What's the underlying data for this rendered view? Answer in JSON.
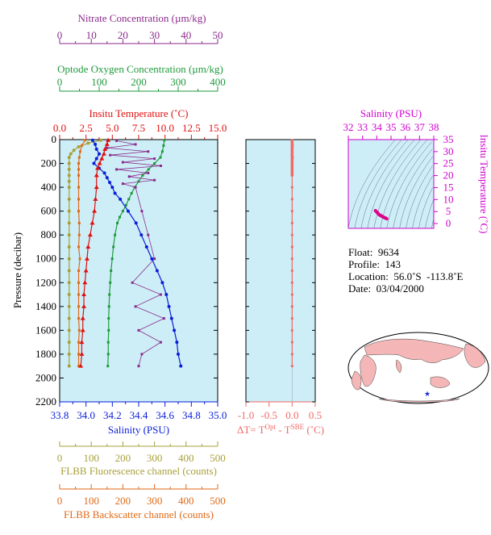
{
  "colors": {
    "panel_bg": "#cdeef7",
    "nitrate": "#8b2a8b",
    "oxygen": "#1e9a3c",
    "temperature": "#e01010",
    "salinity": "#0a1ed8",
    "delta_t": "#f06a6a",
    "fluorescence": "#a8a03a",
    "backscatter": "#e06a18",
    "ts_axis": "#d000d0",
    "ts_contours": "#6a6a8a",
    "ts_points": "#e0008a",
    "map_land": "#f4b6b6",
    "map_ocean": "#ffffff",
    "map_marker": "#1a2ed8"
  },
  "axes": {
    "nitrate": {
      "label": "Nitrate Concentration (µm/kg)",
      "ticks": [
        "0",
        "10",
        "20",
        "30",
        "40",
        "50"
      ],
      "range": [
        0,
        50
      ]
    },
    "oxygen": {
      "label": "Optode Oxygen Concentration (µm/kg)",
      "ticks": [
        "0",
        "100",
        "200",
        "300",
        "400"
      ],
      "range": [
        0,
        400
      ]
    },
    "temperature": {
      "label": "Insitu Temperature (˚C)",
      "ticks": [
        "0.0",
        "2.5",
        "5.0",
        "7.5",
        "10.0",
        "12.5",
        "15.0"
      ],
      "range": [
        0,
        15
      ]
    },
    "pressure": {
      "label": "Pressure (decibar)",
      "ticks": [
        "0",
        "200",
        "400",
        "600",
        "800",
        "1000",
        "1200",
        "1400",
        "1600",
        "1800",
        "2000",
        "2200"
      ],
      "range": [
        0,
        2200
      ]
    },
    "salinity": {
      "label": "Salinity (PSU)",
      "ticks": [
        "33.8",
        "34.0",
        "34.2",
        "34.4",
        "34.6",
        "34.8",
        "35.0"
      ],
      "range": [
        33.8,
        35.0
      ]
    },
    "delta_t": {
      "label_prefix": "ΔT= T",
      "sup1": "Opt",
      "mid": " - T",
      "sup2": "SBE",
      "suffix": " (˚C)",
      "ticks": [
        "-1.0",
        "-0.5",
        "0.0",
        "0.5"
      ],
      "range": [
        -1.0,
        0.5
      ]
    },
    "fluorescence": {
      "label": "FLBB Fluorescence channel (counts)",
      "ticks": [
        "0",
        "100",
        "200",
        "300",
        "400",
        "500"
      ],
      "range": [
        0,
        500
      ]
    },
    "backscatter": {
      "label": "FLBB Backscatter channel (counts)",
      "ticks": [
        "0",
        "100",
        "200",
        "300",
        "400",
        "500"
      ],
      "range": [
        0,
        500
      ]
    },
    "ts_salinity": {
      "label": "Salinity (PSU)",
      "ticks": [
        "32",
        "33",
        "34",
        "35",
        "36",
        "37",
        "38"
      ],
      "range": [
        32,
        38
      ]
    },
    "ts_temperature": {
      "label": "Insitu Temperature (˚C)",
      "ticks": [
        "0",
        "5",
        "10",
        "15",
        "20",
        "25",
        "30",
        "35"
      ],
      "range": [
        -2,
        35
      ]
    }
  },
  "info": {
    "float": "Float:  9634",
    "profile": "Profile:  143",
    "location": "Location:  56.0˚S  -113.8˚E",
    "date": "Date:  03/04/2000"
  },
  "chart_data": [
    {
      "type": "line",
      "series": [
        {
          "key": "temperature",
          "pressure": [
            5,
            40,
            80,
            120,
            160,
            200,
            240,
            300,
            400,
            500,
            600,
            700,
            800,
            900,
            1000,
            1100,
            1200,
            1300,
            1400,
            1500,
            1600,
            1700,
            1800,
            1900
          ],
          "values": [
            4.6,
            4.5,
            4.3,
            4.2,
            4.0,
            3.8,
            3.6,
            3.5,
            3.5,
            3.4,
            3.3,
            3.1,
            2.9,
            2.7,
            2.6,
            2.5,
            2.4,
            2.3,
            2.3,
            2.2,
            2.2,
            2.1,
            2.1,
            2.0
          ]
        },
        {
          "key": "salinity",
          "pressure": [
            5,
            40,
            80,
            120,
            160,
            200,
            240,
            280,
            320,
            360,
            400,
            450,
            500,
            600,
            700,
            800,
            900,
            1000,
            1100,
            1200,
            1300,
            1400,
            1500,
            1600,
            1700,
            1800,
            1900
          ],
          "values": [
            34.05,
            34.07,
            34.08,
            34.1,
            34.08,
            34.06,
            34.1,
            34.14,
            34.16,
            34.18,
            34.2,
            34.22,
            34.26,
            34.32,
            34.38,
            34.42,
            34.46,
            34.5,
            34.54,
            34.58,
            34.61,
            34.63,
            34.65,
            34.67,
            34.69,
            34.7,
            34.72
          ]
        },
        {
          "key": "oxygen",
          "pressure": [
            5,
            50,
            100,
            150,
            200,
            250,
            300,
            350,
            400,
            450,
            500,
            550,
            600,
            650,
            700,
            800,
            900,
            1000,
            1100,
            1200,
            1300,
            1400,
            1500,
            1600,
            1700,
            1800,
            1900
          ],
          "values": [
            265,
            263,
            260,
            255,
            240,
            225,
            210,
            200,
            190,
            182,
            175,
            168,
            160,
            152,
            146,
            140,
            136,
            133,
            130,
            128,
            126,
            125,
            124,
            124,
            123,
            123,
            122
          ]
        },
        {
          "key": "nitrate",
          "pressure": [
            10,
            40,
            70,
            100,
            130,
            160,
            190,
            220,
            250,
            280,
            310,
            340,
            370,
            400,
            600,
            800,
            1000,
            1200,
            1300,
            1400,
            1500,
            1600,
            1700,
            1800,
            1900
          ],
          "values": [
            18,
            24,
            15,
            28,
            16,
            30,
            20,
            32,
            18,
            28,
            22,
            30,
            20,
            24,
            26,
            28,
            30,
            23,
            32,
            24,
            33,
            25,
            32,
            26,
            25
          ]
        },
        {
          "key": "delta_t",
          "pressure": [
            5,
            50,
            100,
            150,
            200,
            300,
            400,
            500,
            600,
            700,
            800,
            900,
            1000,
            1100,
            1200,
            1300,
            1400,
            1500,
            1600,
            1700,
            1800,
            1900
          ],
          "values": [
            0.0,
            0.01,
            0.0,
            0.01,
            0.0,
            0.0,
            0.0,
            0.0,
            0.0,
            0.0,
            0.0,
            0.0,
            0.0,
            0.0,
            0.0,
            0.0,
            0.0,
            0.0,
            0.0,
            0.0,
            0.0,
            0.0
          ]
        },
        {
          "key": "fluorescence",
          "pressure": [
            5,
            30,
            60,
            90,
            120,
            150,
            200,
            250,
            300,
            350,
            400,
            500,
            600,
            700,
            800,
            900,
            1000,
            1100,
            1200,
            1300,
            1400,
            1500,
            1600,
            1700,
            1800,
            1900
          ],
          "values": [
            130,
            90,
            60,
            45,
            35,
            30,
            30,
            30,
            30,
            30,
            30,
            30,
            30,
            30,
            30,
            30,
            30,
            30,
            30,
            30,
            30,
            30,
            30,
            30,
            30,
            30
          ]
        },
        {
          "key": "backscatter",
          "pressure": [
            5,
            50,
            100,
            150,
            200,
            250,
            300,
            400,
            500,
            600,
            700,
            800,
            900,
            1000,
            1100,
            1200,
            1300,
            1400,
            1500,
            1600,
            1700,
            1800,
            1900
          ],
          "values": [
            80,
            70,
            65,
            62,
            60,
            60,
            60,
            60,
            60,
            60,
            62,
            62,
            60,
            64,
            60,
            60,
            60,
            60,
            60,
            62,
            60,
            60,
            60
          ]
        }
      ]
    },
    {
      "type": "scatter",
      "x": [
        33.9,
        33.95,
        34.0,
        34.05,
        34.1,
        34.15,
        34.2,
        34.25,
        34.3,
        34.35,
        34.4,
        34.45,
        34.5,
        34.55,
        34.6,
        34.65,
        34.7
      ],
      "y": [
        5.4,
        5.1,
        4.8,
        4.5,
        4.1,
        3.8,
        3.6,
        3.4,
        3.3,
        3.1,
        2.9,
        2.7,
        2.6,
        2.5,
        2.3,
        2.2,
        2.0
      ]
    }
  ]
}
